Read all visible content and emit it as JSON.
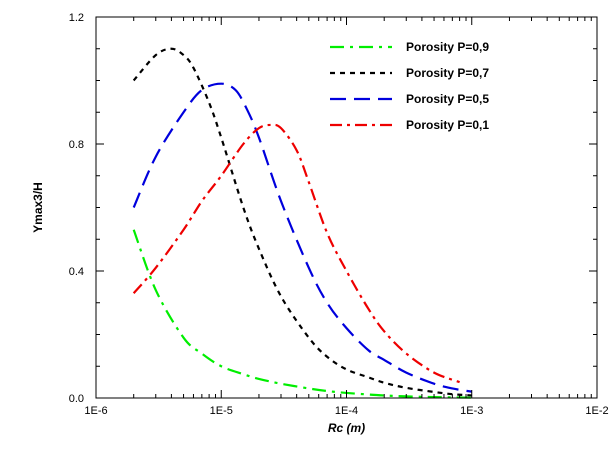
{
  "chart_data": {
    "type": "line",
    "xlabel": "Rc (m)",
    "ylabel": "Ymax3/H",
    "x_scale": "log",
    "xlim": [
      1e-06,
      0.01
    ],
    "ylim": [
      0,
      1.2
    ],
    "x_tick_labels": [
      {
        "value": 1e-06,
        "label": "1E-6"
      },
      {
        "value": 1e-05,
        "label": "1E-5"
      },
      {
        "value": 0.0001,
        "label": "1E-4"
      },
      {
        "value": 0.001,
        "label": "1E-3"
      },
      {
        "value": 0.01,
        "label": "1E-2"
      }
    ],
    "y_tick_labels": [
      {
        "value": 0.0,
        "label": "0.0"
      },
      {
        "value": 0.4,
        "label": "0.4"
      },
      {
        "value": 0.8,
        "label": "0.8"
      },
      {
        "value": 1.2,
        "label": "1.2"
      }
    ],
    "legend_position": "top-right",
    "grid": false,
    "series": [
      {
        "name": "Porosity P=0,9",
        "color": "#00ee00",
        "dash": "long-dash-dot",
        "x": [
          2e-06,
          3e-06,
          5e-06,
          7e-06,
          1e-05,
          1.5e-05,
          2e-05,
          3e-05,
          5e-05,
          7e-05,
          0.0001,
          0.00015,
          0.0002,
          0.0003,
          0.0005,
          0.0007,
          0.001
        ],
        "y": [
          0.53,
          0.34,
          0.19,
          0.14,
          0.1,
          0.075,
          0.06,
          0.045,
          0.03,
          0.022,
          0.016,
          0.011,
          0.008,
          0.005,
          0.003,
          0.002,
          0.001
        ]
      },
      {
        "name": "Porosity P=0,7",
        "color": "#000000",
        "dash": "short-dash",
        "x": [
          2e-06,
          3e-06,
          4e-06,
          5e-06,
          6e-06,
          8e-06,
          1e-05,
          1.5e-05,
          2e-05,
          3e-05,
          5e-05,
          7e-05,
          0.0001,
          0.00015,
          0.0002,
          0.0003,
          0.0005,
          0.0007,
          0.001
        ],
        "y": [
          1.0,
          1.08,
          1.1,
          1.08,
          1.04,
          0.93,
          0.82,
          0.6,
          0.47,
          0.32,
          0.19,
          0.13,
          0.09,
          0.065,
          0.048,
          0.032,
          0.019,
          0.012,
          0.008
        ]
      },
      {
        "name": "Porosity P=0,5",
        "color": "#0000dd",
        "dash": "long-dash",
        "x": [
          2e-06,
          3e-06,
          5e-06,
          7e-06,
          1e-05,
          1.3e-05,
          1.6e-05,
          2e-05,
          3e-05,
          5e-05,
          7e-05,
          0.0001,
          0.00015,
          0.0002,
          0.0003,
          0.0005,
          0.0007,
          0.001
        ],
        "y": [
          0.6,
          0.76,
          0.9,
          0.97,
          0.99,
          0.97,
          0.91,
          0.82,
          0.62,
          0.41,
          0.3,
          0.22,
          0.15,
          0.12,
          0.08,
          0.045,
          0.03,
          0.02
        ]
      },
      {
        "name": "Porosity P=0,1",
        "color": "#ee0000",
        "dash": "dash-dot",
        "x": [
          2e-06,
          3e-06,
          5e-06,
          7e-06,
          1e-05,
          1.5e-05,
          2e-05,
          2.5e-05,
          3e-05,
          4e-05,
          5e-05,
          7e-05,
          0.0001,
          0.00015,
          0.0002,
          0.0003,
          0.0005,
          0.0008
        ],
        "y": [
          0.33,
          0.41,
          0.53,
          0.62,
          0.7,
          0.8,
          0.85,
          0.86,
          0.85,
          0.78,
          0.68,
          0.52,
          0.4,
          0.28,
          0.21,
          0.14,
          0.08,
          0.05
        ]
      }
    ]
  }
}
